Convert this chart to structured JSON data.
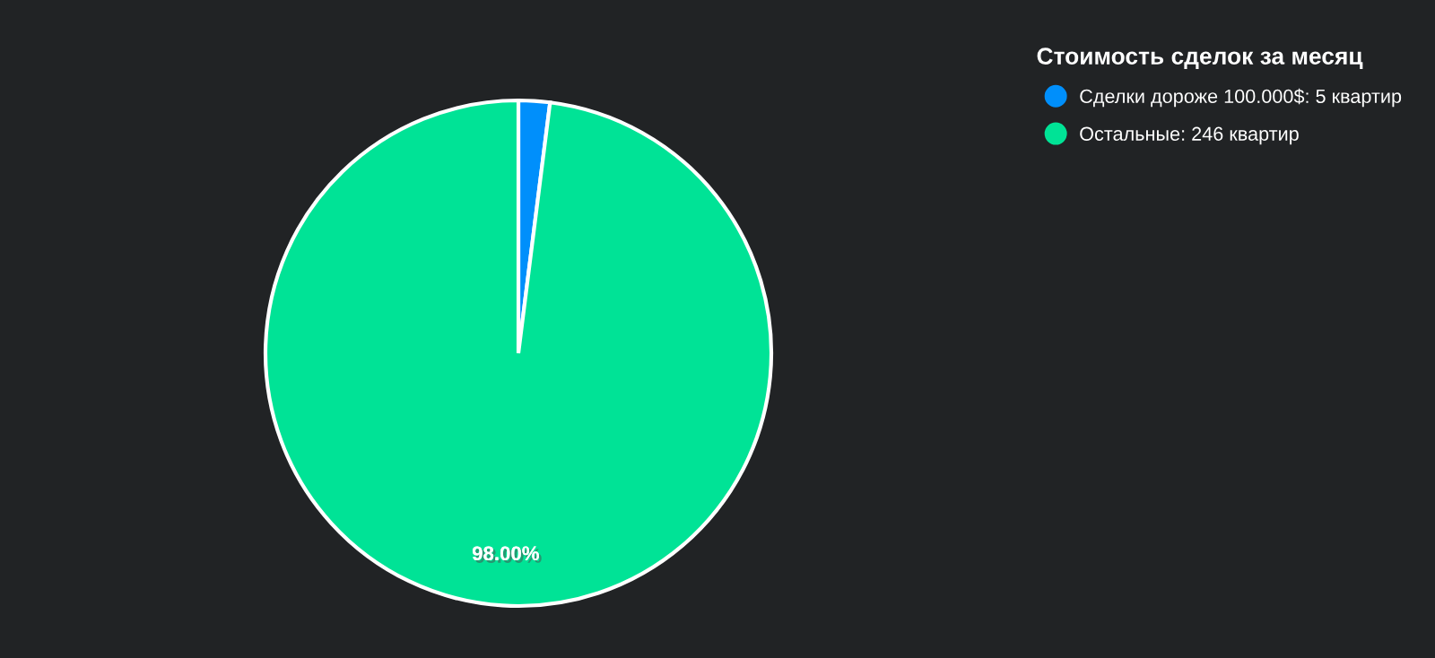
{
  "chart_data": {
    "type": "pie",
    "legend_title": "Стоимость сделок за месяц",
    "categories": [
      "Сделки дороже 100.000$: 5 квартир",
      "Остальные: 246 квартир"
    ],
    "values": [
      2,
      98
    ],
    "colors": [
      "#008ffb",
      "#00e396"
    ],
    "value_labels": [
      null,
      "98.00%"
    ],
    "legend": "top right"
  }
}
